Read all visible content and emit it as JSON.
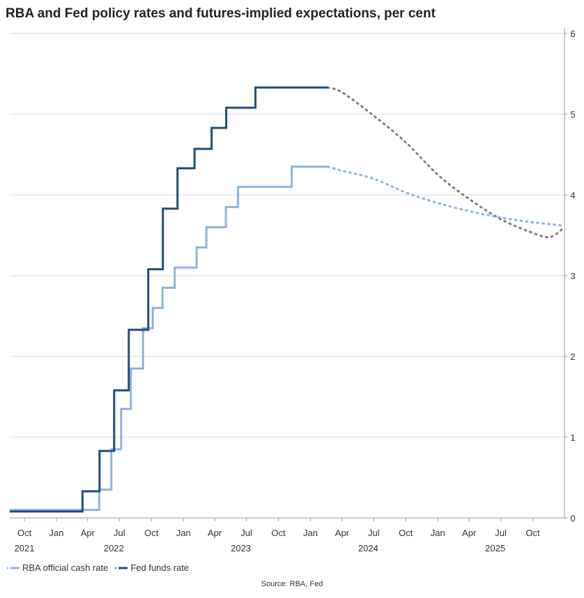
{
  "title": "RBA and Fed policy rates and futures-implied expectations, per cent",
  "source": "Source: RBA, Fed",
  "legend": {
    "rba_label": "RBA official cash rate",
    "fed_label": "Fed funds rate"
  },
  "colors": {
    "rba": "#8db4e2",
    "fed": "#1f4e79",
    "fed_expectation": "#7f7f7f",
    "grid": "#d9d9d9",
    "axis": "#999999"
  },
  "chart_data": {
    "type": "line",
    "title": "RBA and Fed policy rates and futures-implied expectations, per cent",
    "x_range": [
      "2021-08-20",
      "2025-12-31"
    ],
    "ylim": [
      0,
      6
    ],
    "y_ticks": [
      0,
      1,
      2,
      3,
      4,
      5,
      6
    ],
    "y_axis_side": "right",
    "grid": true,
    "legend_position": "bottom-left",
    "month_ticks": [
      {
        "date": "2021-10-01",
        "label": "Oct"
      },
      {
        "date": "2022-01-01",
        "label": "Jan"
      },
      {
        "date": "2022-04-01",
        "label": "Apr"
      },
      {
        "date": "2022-07-01",
        "label": "Jul"
      },
      {
        "date": "2022-10-01",
        "label": "Oct"
      },
      {
        "date": "2023-01-01",
        "label": "Jan"
      },
      {
        "date": "2023-04-01",
        "label": "Apr"
      },
      {
        "date": "2023-07-01",
        "label": "Jul"
      },
      {
        "date": "2023-10-01",
        "label": "Oct"
      },
      {
        "date": "2024-01-01",
        "label": "Jan"
      },
      {
        "date": "2024-04-01",
        "label": "Apr"
      },
      {
        "date": "2024-07-01",
        "label": "Jul"
      },
      {
        "date": "2024-10-01",
        "label": "Oct"
      },
      {
        "date": "2025-01-01",
        "label": "Jan"
      },
      {
        "date": "2025-04-01",
        "label": "Apr"
      },
      {
        "date": "2025-07-01",
        "label": "Jul"
      },
      {
        "date": "2025-10-01",
        "label": "Oct"
      }
    ],
    "year_labels": [
      {
        "date": "2021-10-01",
        "label": "2021"
      },
      {
        "date": "2022-06-15",
        "label": "2022"
      },
      {
        "date": "2023-06-15",
        "label": "2023"
      },
      {
        "date": "2024-06-15",
        "label": "2024"
      },
      {
        "date": "2025-06-15",
        "label": "2025"
      }
    ],
    "series": [
      {
        "name": "RBA official cash rate",
        "line": "step",
        "actual": [
          [
            "2021-08-20",
            0.1
          ],
          [
            "2022-05-04",
            0.35
          ],
          [
            "2022-06-08",
            0.85
          ],
          [
            "2022-07-06",
            1.35
          ],
          [
            "2022-08-03",
            1.85
          ],
          [
            "2022-09-07",
            2.35
          ],
          [
            "2022-10-05",
            2.6
          ],
          [
            "2022-11-02",
            2.85
          ],
          [
            "2022-12-07",
            3.1
          ],
          [
            "2023-02-08",
            3.35
          ],
          [
            "2023-03-08",
            3.6
          ],
          [
            "2023-05-03",
            3.85
          ],
          [
            "2023-06-07",
            4.1
          ],
          [
            "2023-11-08",
            4.35
          ],
          [
            "2024-02-20",
            4.35
          ]
        ],
        "expected": [
          [
            "2024-02-20",
            4.35
          ],
          [
            "2024-04-01",
            4.3
          ],
          [
            "2024-07-01",
            4.2
          ],
          [
            "2024-10-01",
            4.03
          ],
          [
            "2025-01-01",
            3.9
          ],
          [
            "2025-04-01",
            3.8
          ],
          [
            "2025-07-01",
            3.72
          ],
          [
            "2025-10-01",
            3.66
          ],
          [
            "2025-12-31",
            3.62
          ]
        ]
      },
      {
        "name": "Fed funds rate",
        "line": "step",
        "actual": [
          [
            "2021-08-20",
            0.08
          ],
          [
            "2022-03-17",
            0.33
          ],
          [
            "2022-05-05",
            0.83
          ],
          [
            "2022-06-16",
            1.58
          ],
          [
            "2022-07-28",
            2.33
          ],
          [
            "2022-09-22",
            3.08
          ],
          [
            "2022-11-03",
            3.83
          ],
          [
            "2022-12-15",
            4.33
          ],
          [
            "2023-02-02",
            4.57
          ],
          [
            "2023-03-23",
            4.83
          ],
          [
            "2023-05-04",
            5.08
          ],
          [
            "2023-07-27",
            5.33
          ],
          [
            "2024-02-20",
            5.33
          ]
        ],
        "expected": [
          [
            "2024-02-20",
            5.33
          ],
          [
            "2024-04-01",
            5.27
          ],
          [
            "2024-07-01",
            4.98
          ],
          [
            "2024-10-01",
            4.65
          ],
          [
            "2025-01-01",
            4.25
          ],
          [
            "2025-04-01",
            3.95
          ],
          [
            "2025-07-01",
            3.7
          ],
          [
            "2025-10-01",
            3.53
          ],
          [
            "2025-11-20",
            3.48
          ],
          [
            "2025-12-31",
            3.6
          ]
        ]
      }
    ]
  }
}
